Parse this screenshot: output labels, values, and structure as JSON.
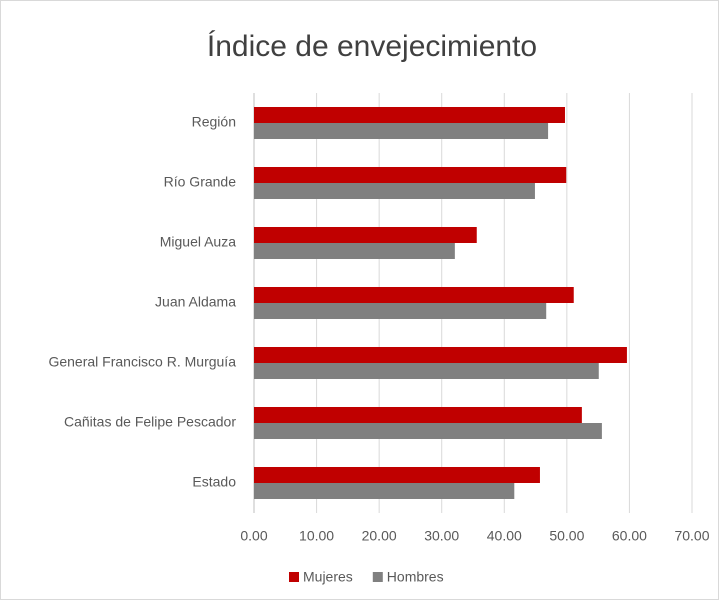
{
  "chart_data": {
    "type": "hbar",
    "title": "Índice de envejecimiento",
    "categories": [
      "Región",
      "Río Grande",
      "Miguel Auza",
      "Juan Aldama",
      "General Francisco R. Murguía",
      "Cañitas de Felipe Pescador",
      "Estado"
    ],
    "series": [
      {
        "name": "Mujeres",
        "color": "#c00000",
        "values": [
          49.7,
          49.9,
          35.6,
          51.1,
          59.6,
          52.4,
          45.7
        ]
      },
      {
        "name": "Hombres",
        "color": "#808080",
        "values": [
          47.0,
          44.9,
          32.1,
          46.7,
          55.1,
          55.6,
          41.6
        ]
      }
    ],
    "xlim": [
      0,
      70
    ],
    "xticks": [
      {
        "value": 0,
        "label": "0.00"
      },
      {
        "value": 10,
        "label": "10.00"
      },
      {
        "value": 20,
        "label": "20.00"
      },
      {
        "value": 30,
        "label": "30.00"
      },
      {
        "value": 40,
        "label": "40.00"
      },
      {
        "value": 50,
        "label": "50.00"
      },
      {
        "value": 60,
        "label": "60.00"
      },
      {
        "value": 70,
        "label": "70.00"
      }
    ],
    "grid": true,
    "legend": "bottom"
  }
}
